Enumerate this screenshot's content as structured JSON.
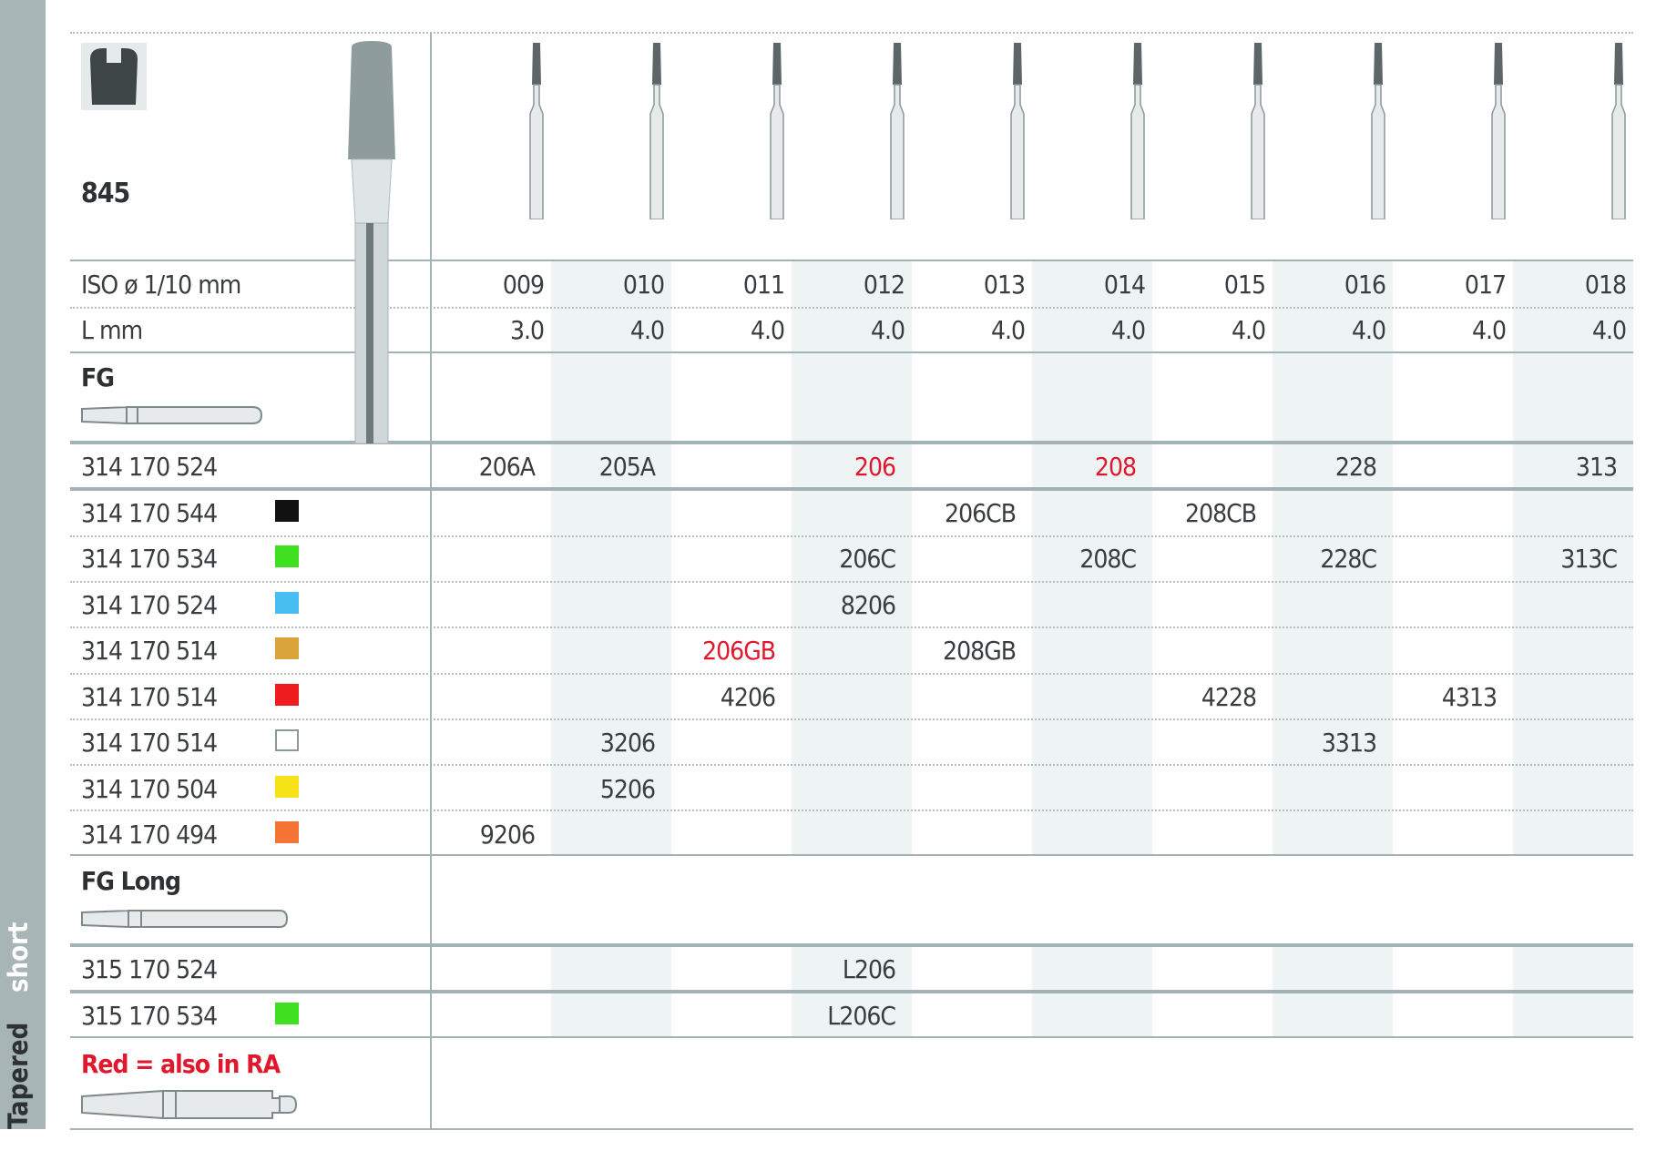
{
  "sidebar": {
    "label_dark": "Tapered",
    "label_light": "short",
    "color": "#a7b5b7"
  },
  "product": {
    "shape_number": "845"
  },
  "header": {
    "iso_label": "ISO ø 1/10 mm",
    "length_label": "L mm"
  },
  "columns": [
    {
      "iso": "009",
      "length": "3.0"
    },
    {
      "iso": "010",
      "length": "4.0"
    },
    {
      "iso": "011",
      "length": "4.0"
    },
    {
      "iso": "012",
      "length": "4.0"
    },
    {
      "iso": "013",
      "length": "4.0"
    },
    {
      "iso": "014",
      "length": "4.0"
    },
    {
      "iso": "015",
      "length": "4.0"
    },
    {
      "iso": "016",
      "length": "4.0"
    },
    {
      "iso": "017",
      "length": "4.0"
    },
    {
      "iso": "018",
      "length": "4.0"
    }
  ],
  "fg": {
    "title": "FG",
    "rows": [
      {
        "code": "314 170 524",
        "swatch": "",
        "cells": [
          "206A",
          "205A",
          "",
          "206",
          "",
          "208",
          "",
          "228",
          "",
          "313"
        ],
        "red": [
          "206",
          "208"
        ]
      },
      {
        "code": "314 170 544",
        "swatch": "#111111",
        "cells": [
          "",
          "",
          "",
          "",
          "206CB",
          "",
          "208CB",
          "",
          "",
          ""
        ],
        "red": []
      },
      {
        "code": "314 170 534",
        "swatch": "#3fe01f",
        "cells": [
          "",
          "",
          "",
          "206C",
          "",
          "208C",
          "",
          "228C",
          "",
          "313C"
        ],
        "red": []
      },
      {
        "code": "314 170 524",
        "swatch": "#48bdf0",
        "cells": [
          "",
          "",
          "",
          "8206",
          "",
          "",
          "",
          "",
          "",
          ""
        ],
        "red": []
      },
      {
        "code": "314 170 514",
        "swatch": "#d9a43a",
        "cells": [
          "",
          "",
          "206GB",
          "",
          "208GB",
          "",
          "",
          "",
          "",
          ""
        ],
        "red": [
          "206GB"
        ]
      },
      {
        "code": "314 170 514",
        "swatch": "#ee1c1c",
        "cells": [
          "",
          "",
          "4206",
          "",
          "",
          "",
          "4228",
          "",
          "4313",
          ""
        ],
        "red": []
      },
      {
        "code": "314 170 514",
        "swatch": "#ffffff",
        "cells": [
          "",
          "3206",
          "",
          "",
          "",
          "",
          "",
          "3313",
          "",
          ""
        ],
        "red": []
      },
      {
        "code": "314 170 504",
        "swatch": "#f7e21a",
        "cells": [
          "",
          "5206",
          "",
          "",
          "",
          "",
          "",
          "",
          "",
          ""
        ],
        "red": []
      },
      {
        "code": "314 170 494",
        "swatch": "#f57335",
        "cells": [
          "9206",
          "",
          "",
          "",
          "",
          "",
          "",
          "",
          "",
          ""
        ],
        "red": []
      }
    ]
  },
  "fg_long": {
    "title": "FG Long",
    "rows": [
      {
        "code": "315 170 524",
        "swatch": "",
        "cells": [
          "",
          "",
          "",
          "L206",
          "",
          "",
          "",
          "",
          "",
          ""
        ],
        "red": []
      },
      {
        "code": "315 170 534",
        "swatch": "#3fe01f",
        "cells": [
          "",
          "",
          "",
          "L206C",
          "",
          "",
          "",
          "",
          "",
          ""
        ],
        "red": []
      }
    ]
  },
  "legend": {
    "note": "Red = also in RA",
    "note_color": "#e0182d"
  },
  "colors": {
    "line": "#a3b3b5",
    "shade": "#eef3f3",
    "text": "#3a3d3f"
  }
}
